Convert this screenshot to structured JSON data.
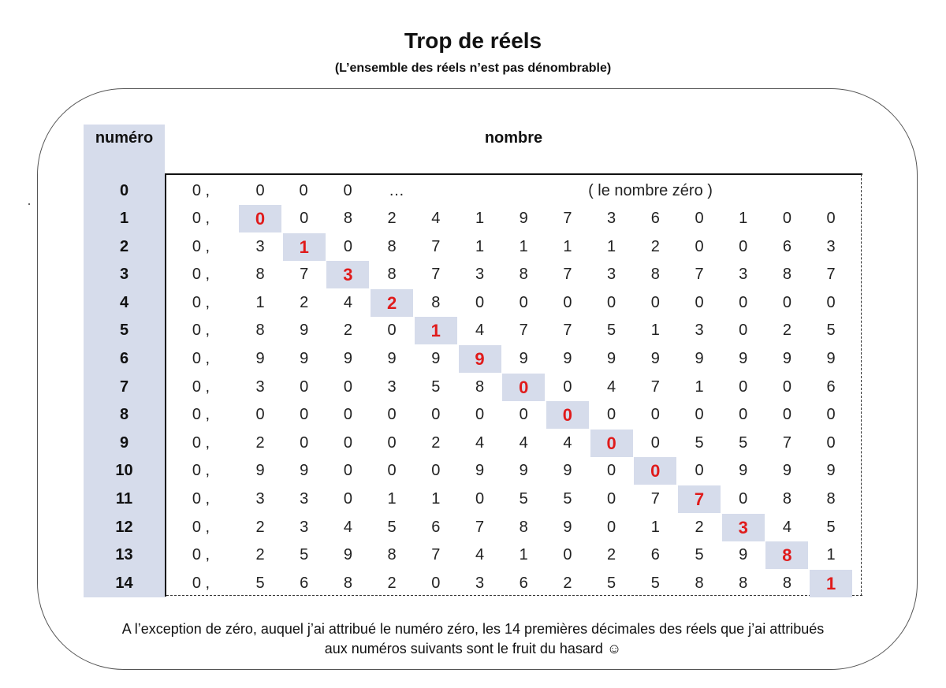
{
  "title": "Trop de réels",
  "subtitle": "(L’ensemble des réels n’est pas dénombrable)",
  "table": {
    "col_numero": "numéro",
    "col_nombre": "nombre",
    "prefix": "0 ,",
    "zero_row": {
      "numero": "0",
      "digits": [
        "0",
        "0",
        "0"
      ],
      "ellipsis": "…",
      "label": "( le nombre zéro )"
    },
    "rows": [
      {
        "numero": "1",
        "digits": [
          "0",
          "0",
          "8",
          "2",
          "4",
          "1",
          "9",
          "7",
          "3",
          "6",
          "0",
          "1",
          "0",
          "0"
        ]
      },
      {
        "numero": "2",
        "digits": [
          "3",
          "1",
          "0",
          "8",
          "7",
          "1",
          "1",
          "1",
          "1",
          "2",
          "0",
          "0",
          "6",
          "3"
        ]
      },
      {
        "numero": "3",
        "digits": [
          "8",
          "7",
          "3",
          "8",
          "7",
          "3",
          "8",
          "7",
          "3",
          "8",
          "7",
          "3",
          "8",
          "7"
        ]
      },
      {
        "numero": "4",
        "digits": [
          "1",
          "2",
          "4",
          "2",
          "8",
          "0",
          "0",
          "0",
          "0",
          "0",
          "0",
          "0",
          "0",
          "0"
        ]
      },
      {
        "numero": "5",
        "digits": [
          "8",
          "9",
          "2",
          "0",
          "1",
          "4",
          "7",
          "7",
          "5",
          "1",
          "3",
          "0",
          "2",
          "5"
        ]
      },
      {
        "numero": "6",
        "digits": [
          "9",
          "9",
          "9",
          "9",
          "9",
          "9",
          "9",
          "9",
          "9",
          "9",
          "9",
          "9",
          "9",
          "9"
        ]
      },
      {
        "numero": "7",
        "digits": [
          "3",
          "0",
          "0",
          "3",
          "5",
          "8",
          "0",
          "0",
          "4",
          "7",
          "1",
          "0",
          "0",
          "6"
        ]
      },
      {
        "numero": "8",
        "digits": [
          "0",
          "0",
          "0",
          "0",
          "0",
          "0",
          "0",
          "0",
          "0",
          "0",
          "0",
          "0",
          "0",
          "0"
        ]
      },
      {
        "numero": "9",
        "digits": [
          "2",
          "0",
          "0",
          "0",
          "2",
          "4",
          "4",
          "4",
          "0",
          "0",
          "5",
          "5",
          "7",
          "0"
        ]
      },
      {
        "numero": "10",
        "digits": [
          "9",
          "9",
          "0",
          "0",
          "0",
          "9",
          "9",
          "9",
          "0",
          "0",
          "0",
          "9",
          "9",
          "9"
        ]
      },
      {
        "numero": "11",
        "digits": [
          "3",
          "3",
          "0",
          "1",
          "1",
          "0",
          "5",
          "5",
          "0",
          "7",
          "7",
          "0",
          "8",
          "8"
        ]
      },
      {
        "numero": "12",
        "digits": [
          "2",
          "3",
          "4",
          "5",
          "6",
          "7",
          "8",
          "9",
          "0",
          "1",
          "2",
          "3",
          "4",
          "5"
        ]
      },
      {
        "numero": "13",
        "digits": [
          "2",
          "5",
          "9",
          "8",
          "7",
          "4",
          "1",
          "0",
          "2",
          "6",
          "5",
          "9",
          "8",
          "1"
        ]
      },
      {
        "numero": "14",
        "digits": [
          "5",
          "6",
          "8",
          "2",
          "0",
          "3",
          "6",
          "2",
          "5",
          "5",
          "8",
          "8",
          "8",
          "1"
        ]
      }
    ]
  },
  "footer": {
    "line1": "A l’exception de zéro, auquel j’ai attribué le numéro zéro, les 14 premières décimales des réels que j’ai attribués",
    "line2": "aux numéros suivants sont le fruit du hasard ☺"
  },
  "colors": {
    "highlight_bg": "#d6dceb",
    "diagonal_digit": "#e01b1b"
  }
}
